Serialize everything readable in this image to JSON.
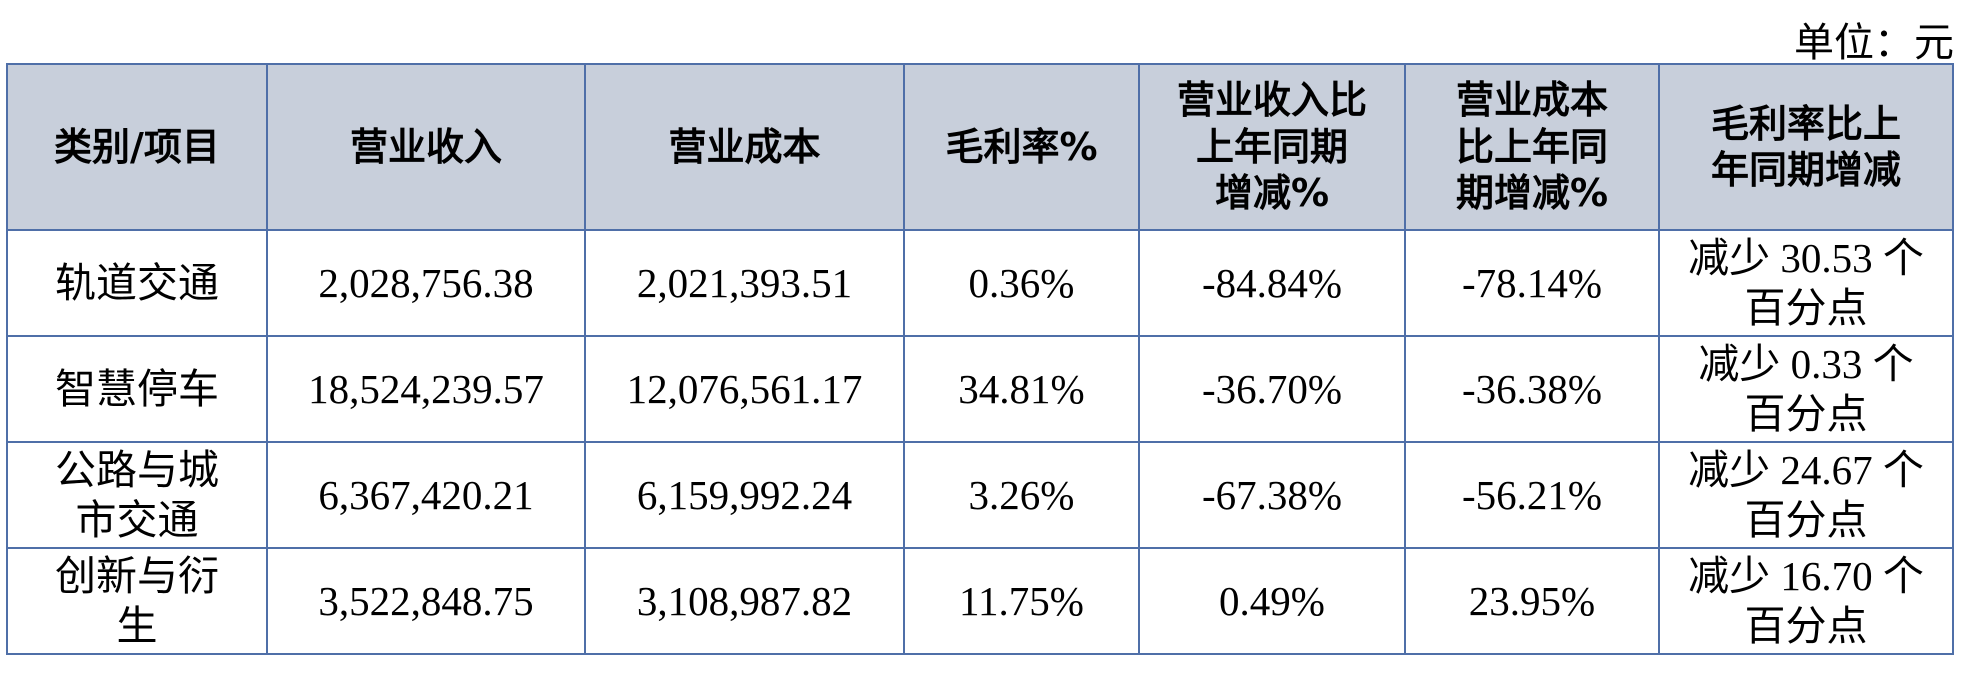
{
  "header": {
    "unit": "单位：元"
  },
  "table": {
    "header": [
      "类别/项目",
      "营业收入",
      "营业成本",
      "毛利率%",
      "营业收入比\n上年同期\n增减%",
      "营业成本\n比上年同\n期增减%",
      "毛利率比上\n年同期增减"
    ],
    "rows": [
      [
        "轨道交通",
        "2,028,756.38",
        "2,021,393.51",
        "0.36%",
        "-84.84%",
        "-78.14%",
        "减少 30.53 个\n百分点"
      ],
      [
        "智慧停车",
        "18,524,239.57",
        "12,076,561.17",
        "34.81%",
        "-36.70%",
        "-36.38%",
        "减少 0.33 个\n百分点"
      ],
      [
        "公路与城\n市交通",
        "6,367,420.21",
        "6,159,992.24",
        "3.26%",
        "-67.38%",
        "-56.21%",
        "减少 24.67 个\n百分点"
      ],
      [
        "创新与衍\n生",
        "3,522,848.75",
        "3,108,987.82",
        "11.75%",
        "0.49%",
        "23.95%",
        "减少 16.70 个\n百分点"
      ]
    ]
  }
}
